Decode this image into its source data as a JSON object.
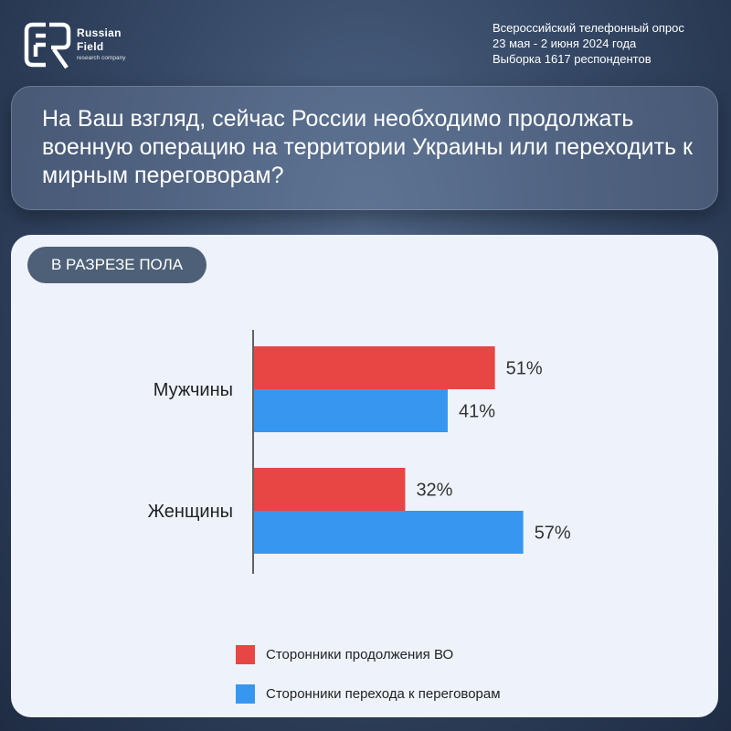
{
  "brand": {
    "line1": "Russian",
    "line2": "Field",
    "line3": "research company"
  },
  "survey": {
    "line1": "Всероссийский телефонный опрос",
    "line2": "23 мая - 2 июня 2024 года",
    "line3": "Выборка 1617 респондентов"
  },
  "question": "На Ваш взгляд, сейчас России необходимо продолжать военную операцию на территории Украины или переходить к мирным переговорам?",
  "tag": "В РАЗРЕЗЕ ПОЛА",
  "colors": {
    "red": "#e84545",
    "blue": "#3797f0"
  },
  "chart_data": {
    "type": "bar",
    "orientation": "horizontal",
    "categories": [
      "Мужчины",
      "Женщины"
    ],
    "series": [
      {
        "name": "Сторонники продолжения ВО",
        "values": [
          51,
          32
        ],
        "labels": [
          "51%",
          "32%"
        ]
      },
      {
        "name": "Сторонники перехода к переговорам",
        "values": [
          41,
          57
        ],
        "labels": [
          "41%",
          "57%"
        ]
      }
    ],
    "xlim": [
      0,
      100
    ],
    "grid": false,
    "legend_position": "bottom"
  }
}
